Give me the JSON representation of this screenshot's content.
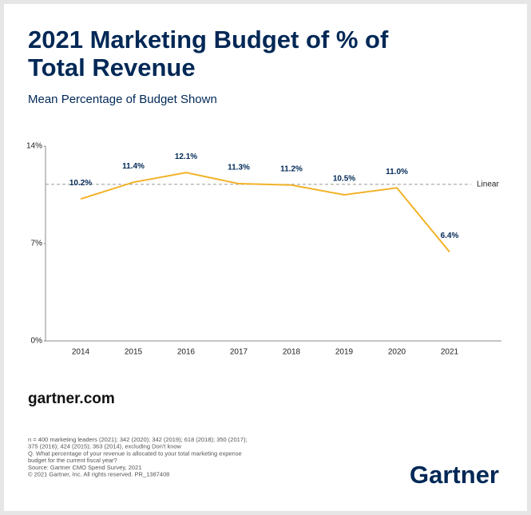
{
  "chart_data": {
    "type": "line",
    "title_lines": [
      "2021 Marketing Budget of % of",
      "Total Revenue"
    ],
    "subtitle": "Mean Percentage of Budget Shown",
    "categories": [
      "2014",
      "2015",
      "2016",
      "2017",
      "2018",
      "2019",
      "2020",
      "2021"
    ],
    "values": [
      10.2,
      11.4,
      12.1,
      11.3,
      11.2,
      10.5,
      11.0,
      6.4
    ],
    "value_labels": [
      "10.2%",
      "11.4%",
      "12.1%",
      "11.3%",
      "11.2%",
      "10.5%",
      "11.0%",
      "6.4%"
    ],
    "color": "#f2b227",
    "ylim": [
      0,
      14
    ],
    "yticks": [
      {
        "value": 0,
        "label": "0%"
      },
      {
        "value": 7,
        "label": "7%"
      },
      {
        "value": 14,
        "label": "14%"
      }
    ],
    "reference_line": {
      "label": "Linear",
      "value": 11.25
    }
  },
  "footer": {
    "site": "gartner.com",
    "notes": [
      "n = 400 marketing leaders (2021); 342 (2020); 342 (2019); 618 (2018); 350 (2017);",
      "375 (2016); 424 (2015); 363 (2014), excluding Don't know",
      "Q. What percentage of your revenue is allocated to your total marketing expense",
      "budget for the current fiscal year?",
      "Source: Gartner CMO Spend Survey, 2021",
      "© 2021 Gartner, Inc. All rights reserved. PR_1387408"
    ],
    "logo": "Gartner"
  }
}
